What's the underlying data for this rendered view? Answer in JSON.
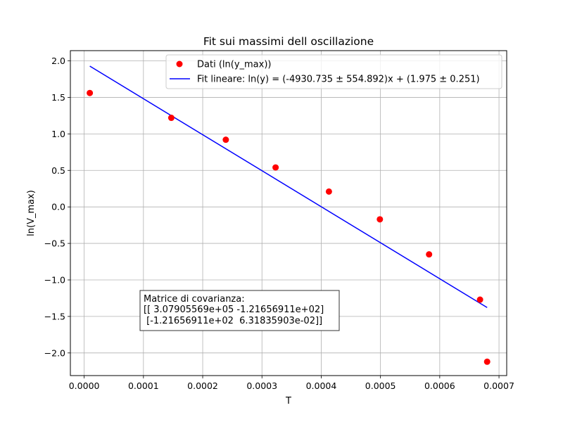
{
  "chart_data": {
    "type": "scatter",
    "title": "Fit sui massimi dell oscillazione",
    "xlabel": "T",
    "ylabel": "ln(V_max)",
    "xlim": [
      -2.33e-05,
      0.000713
    ],
    "ylim": [
      -2.31,
      2.14
    ],
    "grid": true,
    "legend_position": "top-right",
    "x_ticks": [
      0.0,
      0.0001,
      0.0002,
      0.0003,
      0.0004,
      0.0005,
      0.0006,
      0.0007
    ],
    "x_tick_labels": [
      "0.0000",
      "0.0001",
      "0.0002",
      "0.0003",
      "0.0004",
      "0.0005",
      "0.0006",
      "0.0007"
    ],
    "y_ticks": [
      2.0,
      1.5,
      1.0,
      0.5,
      0.0,
      -0.5,
      -1.0,
      -1.5,
      -2.0
    ],
    "y_tick_labels": [
      "2.0",
      "1.5",
      "1.0",
      "0.5",
      "0.0",
      "−0.5",
      "−1.0",
      "−1.5",
      "−2.0"
    ],
    "series": [
      {
        "name": "Dati (ln(y_max))",
        "kind": "scatter",
        "color": "#ff0000",
        "x": [
          9.5e-06,
          0.000147,
          0.000239,
          0.000323,
          0.000413,
          0.000499,
          0.000582,
          0.000668,
          0.00068
        ],
        "y": [
          1.56,
          1.22,
          0.92,
          0.54,
          0.21,
          -0.17,
          -0.65,
          -1.27,
          -2.12
        ]
      },
      {
        "name": "Fit lineare: ln(y) = (-4930.735 ± 554.892)x + (1.975 ± 0.251)",
        "kind": "line",
        "color": "#0000ff",
        "x": [
          9.5e-06,
          0.00068
        ],
        "y": [
          1.928,
          -1.378
        ]
      }
    ],
    "annotation": {
      "lines": [
        "Matrice di covarianza:",
        "[[ 3.07905569e+05 -1.21656911e+02]",
        " [-1.21656911e+02  6.31835903e-02]]"
      ]
    }
  }
}
